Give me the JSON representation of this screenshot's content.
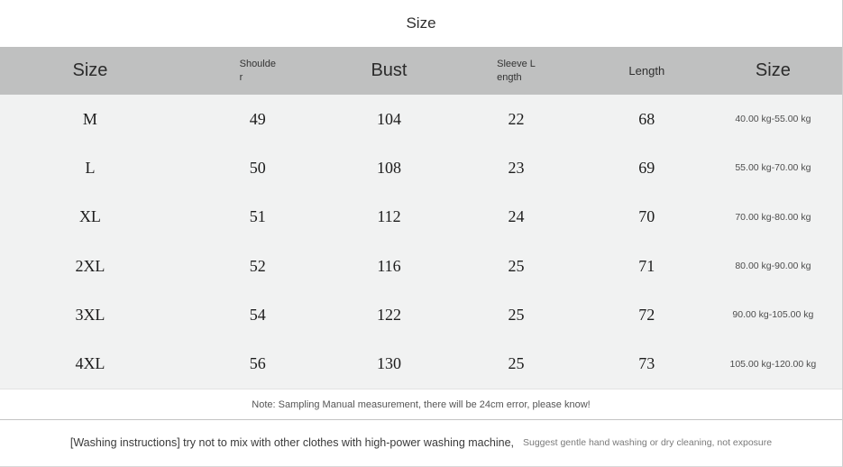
{
  "title": "Size",
  "colors": {
    "header_bg": "#bfc0c0",
    "table_body_bg": "#f1f2f2",
    "page_bg": "#ffffff"
  },
  "table": {
    "headers": {
      "size_left": "Size",
      "shoulder": "Shoulde\nr",
      "bust": "Bust",
      "sleeve_length": "Sleeve L\nength",
      "length": "Length",
      "size_right": "Size"
    },
    "rows": [
      {
        "size": "M",
        "shoulder": "49",
        "bust": "104",
        "sleeve": "22",
        "length": "68",
        "weight": "40.00 kg-55.00 kg"
      },
      {
        "size": "L",
        "shoulder": "50",
        "bust": "108",
        "sleeve": "23",
        "length": "69",
        "weight": "55.00 kg-70.00 kg"
      },
      {
        "size": "XL",
        "shoulder": "51",
        "bust": "112",
        "sleeve": "24",
        "length": "70",
        "weight": "70.00 kg-80.00 kg"
      },
      {
        "size": "2XL",
        "shoulder": "52",
        "bust": "116",
        "sleeve": "25",
        "length": "71",
        "weight": "80.00 kg-90.00 kg"
      },
      {
        "size": "3XL",
        "shoulder": "54",
        "bust": "122",
        "sleeve": "25",
        "length": "72",
        "weight": "90.00 kg-105.00 kg"
      },
      {
        "size": "4XL",
        "shoulder": "56",
        "bust": "130",
        "sleeve": "25",
        "length": "73",
        "weight": "105.00 kg-120.00 kg"
      }
    ]
  },
  "notes": {
    "measurement": "Note: Sampling Manual measurement, there will be 24cm error, please know!",
    "washing_main": "[Washing instructions] try not to mix with other clothes with high-power washing machine,",
    "washing_secondary": "Suggest gentle hand washing or dry cleaning, not exposure"
  }
}
